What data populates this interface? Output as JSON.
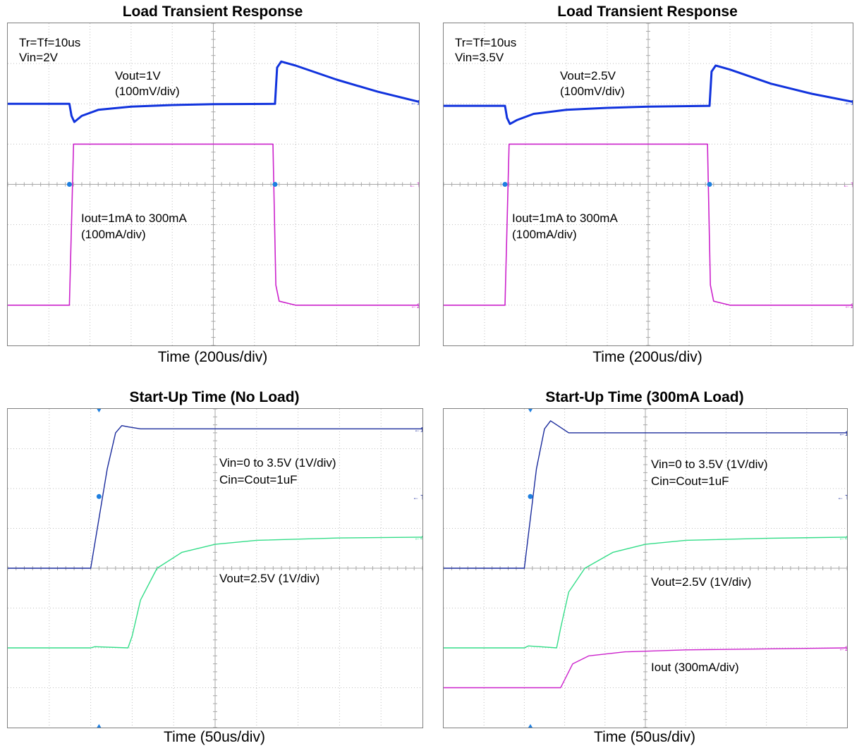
{
  "colors": {
    "vout_blue": "#1133dd",
    "vin_navy": "#1a2b9c",
    "iout_magenta": "#cc22cc",
    "vout_green": "#33dd88",
    "trigger_dot": "#1e7fe0",
    "grid": "#bfbfbf",
    "frame": "#808080"
  },
  "chart_data": [
    {
      "type": "line",
      "title": "Load Transient Response",
      "xlabel": "Time (200us/div)",
      "annotations": [
        "Tr=Tf=10us",
        "Vin=2V",
        "Vout=1V",
        "(100mV/div)",
        "Iout=1mA to 300mA",
        "(100mA/div)"
      ],
      "grid": true,
      "divisions": {
        "x": 10,
        "y": 8
      },
      "series": [
        {
          "name": "Vout=1V",
          "channel": "1",
          "color": "#1133dd",
          "points": [
            [
              0,
              2.0
            ],
            [
              1.5,
              2.0
            ],
            [
              1.55,
              2.3
            ],
            [
              1.62,
              2.45
            ],
            [
              1.8,
              2.3
            ],
            [
              2.2,
              2.15
            ],
            [
              3,
              2.07
            ],
            [
              4,
              2.03
            ],
            [
              5,
              2.01
            ],
            [
              6.5,
              2.0
            ],
            [
              6.55,
              1.1
            ],
            [
              6.65,
              0.95
            ],
            [
              7,
              1.05
            ],
            [
              8,
              1.4
            ],
            [
              9,
              1.7
            ],
            [
              10,
              1.95
            ]
          ]
        },
        {
          "name": "Iout=1mA to 300mA",
          "channel": "2",
          "color": "#cc22cc",
          "points": [
            [
              0,
              7.0
            ],
            [
              1.5,
              7.0
            ],
            [
              1.6,
              3.0
            ],
            [
              6.45,
              3.0
            ],
            [
              6.52,
              6.5
            ],
            [
              6.6,
              6.9
            ],
            [
              7,
              7.0
            ],
            [
              10,
              7.0
            ]
          ]
        }
      ]
    },
    {
      "type": "line",
      "title": "Load Transient Response",
      "xlabel": "Time (200us/div)",
      "annotations": [
        "Tr=Tf=10us",
        "Vin=3.5V",
        "Vout=2.5V",
        "(100mV/div)",
        "Iout=1mA to 300mA",
        "(100mA/div)"
      ],
      "grid": true,
      "divisions": {
        "x": 10,
        "y": 8
      },
      "series": [
        {
          "name": "Vout=2.5V",
          "channel": "1",
          "color": "#1133dd",
          "points": [
            [
              0,
              2.05
            ],
            [
              1.5,
              2.05
            ],
            [
              1.55,
              2.35
            ],
            [
              1.62,
              2.5
            ],
            [
              1.8,
              2.4
            ],
            [
              2.2,
              2.25
            ],
            [
              3,
              2.15
            ],
            [
              4,
              2.1
            ],
            [
              5,
              2.07
            ],
            [
              6.5,
              2.05
            ],
            [
              6.55,
              1.2
            ],
            [
              6.65,
              1.05
            ],
            [
              7,
              1.15
            ],
            [
              8,
              1.5
            ],
            [
              9,
              1.75
            ],
            [
              10,
              1.95
            ]
          ]
        },
        {
          "name": "Iout=1mA to 300mA",
          "channel": "2",
          "color": "#cc22cc",
          "points": [
            [
              0,
              7.0
            ],
            [
              1.5,
              7.0
            ],
            [
              1.6,
              3.0
            ],
            [
              6.45,
              3.0
            ],
            [
              6.52,
              6.5
            ],
            [
              6.6,
              6.9
            ],
            [
              7,
              7.0
            ],
            [
              10,
              7.0
            ]
          ]
        }
      ]
    },
    {
      "type": "line",
      "title": "Start-Up Time (No Load)",
      "xlabel": "Time (50us/div)",
      "annotations": [
        "Vin=0 to 3.5V (1V/div)",
        "Cin=Cout=1uF",
        "Vout=2.5V (1V/div)"
      ],
      "grid": true,
      "divisions": {
        "x": 10,
        "y": 8
      },
      "series": [
        {
          "name": "Vin=0 to 3.5V (1V/div)",
          "channel": "1",
          "color": "#1a2b9c",
          "points": [
            [
              0,
              4.0
            ],
            [
              2.0,
              4.0
            ],
            [
              2.4,
              1.5
            ],
            [
              2.6,
              0.6
            ],
            [
              2.75,
              0.42
            ],
            [
              2.9,
              0.45
            ],
            [
              3.2,
              0.5
            ],
            [
              10,
              0.5
            ]
          ]
        },
        {
          "name": "Vout=2.5V (1V/div)",
          "channel": "4",
          "color": "#33dd88",
          "points": [
            [
              0,
              6.0
            ],
            [
              2.0,
              6.0
            ],
            [
              2.1,
              5.97
            ],
            [
              2.9,
              6.0
            ],
            [
              3.0,
              5.7
            ],
            [
              3.2,
              4.8
            ],
            [
              3.6,
              4.0
            ],
            [
              4.2,
              3.6
            ],
            [
              5,
              3.4
            ],
            [
              6,
              3.3
            ],
            [
              8,
              3.24
            ],
            [
              10,
              3.22
            ]
          ]
        }
      ]
    },
    {
      "type": "line",
      "title": "Start-Up Time (300mA Load)",
      "xlabel": "Time (50us/div)",
      "annotations": [
        "Vin=0 to 3.5V (1V/div)",
        "Cin=Cout=1uF",
        "Vout=2.5V (1V/div)",
        "Iout (300mA/div)"
      ],
      "grid": true,
      "divisions": {
        "x": 10,
        "y": 8
      },
      "series": [
        {
          "name": "Vin=0 to 3.5V (1V/div)",
          "channel": "1",
          "color": "#1a2b9c",
          "points": [
            [
              0,
              4.0
            ],
            [
              2.0,
              4.0
            ],
            [
              2.3,
              1.5
            ],
            [
              2.5,
              0.5
            ],
            [
              2.65,
              0.3
            ],
            [
              2.8,
              0.4
            ],
            [
              3.1,
              0.6
            ],
            [
              3.6,
              0.6
            ],
            [
              10,
              0.6
            ]
          ]
        },
        {
          "name": "Vout=2.5V (1V/div)",
          "channel": "4",
          "color": "#33dd88",
          "points": [
            [
              0,
              6.0
            ],
            [
              2.0,
              6.0
            ],
            [
              2.1,
              5.95
            ],
            [
              2.8,
              6.0
            ],
            [
              2.9,
              5.5
            ],
            [
              3.1,
              4.6
            ],
            [
              3.5,
              4.0
            ],
            [
              4.2,
              3.6
            ],
            [
              5,
              3.4
            ],
            [
              6,
              3.3
            ],
            [
              8,
              3.25
            ],
            [
              10,
              3.22
            ]
          ]
        },
        {
          "name": "Iout (300mA/div)",
          "channel": "2",
          "color": "#cc22cc",
          "points": [
            [
              0,
              7.0
            ],
            [
              2.9,
              7.0
            ],
            [
              3.0,
              6.8
            ],
            [
              3.2,
              6.4
            ],
            [
              3.6,
              6.2
            ],
            [
              4.5,
              6.1
            ],
            [
              6,
              6.05
            ],
            [
              10,
              6.0
            ]
          ]
        }
      ]
    }
  ]
}
